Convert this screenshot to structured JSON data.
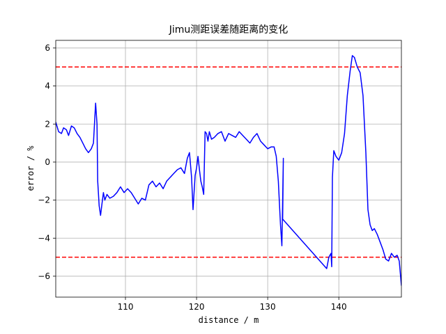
{
  "chart_data": {
    "type": "line",
    "title": "Jimu测距误差随距离的变化",
    "xlabel": "distance / m",
    "ylabel": "error / %",
    "xlim": [
      100.2,
      148.8
    ],
    "ylim": [
      -7.1,
      6.4
    ],
    "xticks": [
      110,
      120,
      130,
      140
    ],
    "yticks": [
      -6,
      -4,
      -2,
      0,
      2,
      4,
      6
    ],
    "grid": true,
    "series": [
      {
        "color": "#0000ff",
        "x": [
          100.2,
          100.6,
          101.0,
          101.3,
          101.7,
          102.0,
          102.4,
          102.8,
          103.2,
          103.6,
          104.0,
          104.4,
          104.8,
          105.2,
          105.5,
          105.8,
          106.0,
          106.1,
          106.3,
          106.5,
          106.7,
          106.9,
          107.1,
          107.4,
          107.8,
          108.3,
          108.8,
          109.3,
          109.8,
          110.3,
          110.8,
          111.3,
          111.8,
          112.3,
          112.8,
          113.3,
          113.8,
          114.3,
          114.8,
          115.3,
          115.8,
          116.3,
          116.8,
          117.3,
          117.8,
          118.3,
          118.7,
          119.0,
          119.3,
          119.5,
          119.8,
          120.0,
          120.2,
          120.4,
          120.6,
          120.8,
          121.0,
          121.2,
          121.4,
          121.6,
          121.8,
          122.1,
          122.5,
          123.0,
          123.5,
          124.0,
          124.5,
          125.0,
          125.5,
          126.0,
          126.5,
          127.0,
          127.5,
          128.0,
          128.5,
          129.0,
          129.5,
          130.0,
          130.5,
          130.9,
          131.2,
          131.5,
          131.8,
          132.0,
          132.2,
          132.1,
          138.3,
          138.6,
          138.9,
          139.0,
          139.1,
          139.3,
          139.6,
          140.0,
          140.4,
          140.8,
          141.2,
          141.6,
          141.9,
          142.2,
          142.6,
          143.0,
          143.4,
          143.8,
          144.1,
          144.4,
          144.7,
          145.0,
          145.4,
          145.8,
          146.2,
          146.6,
          147.0,
          147.4,
          147.8,
          148.2,
          148.5,
          148.8
        ],
        "y": [
          2.1,
          1.6,
          1.5,
          1.8,
          1.7,
          1.4,
          1.9,
          1.8,
          1.5,
          1.3,
          1.0,
          0.7,
          0.5,
          0.7,
          1.0,
          3.1,
          2.0,
          -1.0,
          -2.3,
          -2.8,
          -2.2,
          -1.6,
          -2.0,
          -1.7,
          -1.9,
          -1.8,
          -1.6,
          -1.3,
          -1.6,
          -1.4,
          -1.6,
          -1.9,
          -2.2,
          -1.9,
          -2.0,
          -1.2,
          -1.0,
          -1.3,
          -1.1,
          -1.4,
          -1.0,
          -0.8,
          -0.6,
          -0.4,
          -0.3,
          -0.6,
          0.2,
          0.5,
          -0.8,
          -2.5,
          -0.7,
          -0.3,
          0.3,
          -0.4,
          -1.0,
          -1.3,
          -1.7,
          1.6,
          1.5,
          1.1,
          1.6,
          1.2,
          1.3,
          1.5,
          1.6,
          1.1,
          1.5,
          1.4,
          1.3,
          1.6,
          1.4,
          1.2,
          1.0,
          1.3,
          1.5,
          1.1,
          0.9,
          0.7,
          0.8,
          0.8,
          0.3,
          -1.0,
          -3.3,
          -4.4,
          0.2,
          -3.0,
          -5.6,
          -5.0,
          -4.8,
          -5.5,
          -0.8,
          0.6,
          0.3,
          0.1,
          0.5,
          1.5,
          3.5,
          4.8,
          5.6,
          5.5,
          5.0,
          4.7,
          3.5,
          0.5,
          -2.5,
          -3.3,
          -3.6,
          -3.5,
          -3.8,
          -4.2,
          -4.6,
          -5.1,
          -5.2,
          -4.8,
          -5.0,
          -4.9,
          -5.2,
          -6.5
        ]
      }
    ],
    "reference_lines": [
      {
        "y": 5,
        "color": "#ff0000",
        "style": "dashed"
      },
      {
        "y": -5,
        "color": "#ff0000",
        "style": "dashed"
      }
    ]
  }
}
